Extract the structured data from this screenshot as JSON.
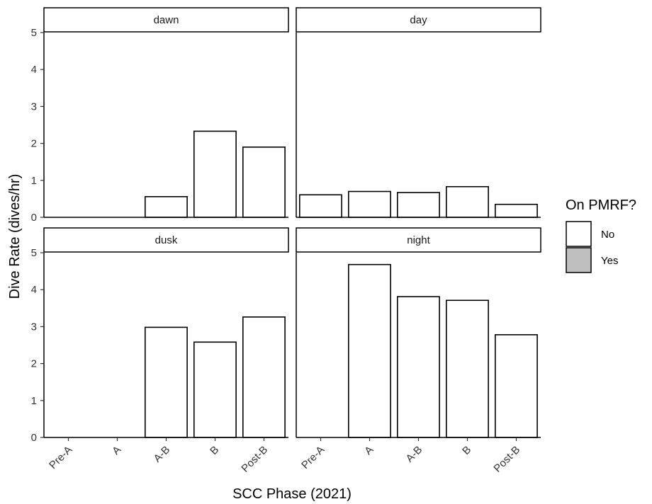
{
  "chart_data": {
    "type": "bar",
    "xlabel": "SCC Phase (2021)",
    "ylabel": "Dive Rate (dives/hr)",
    "categories": [
      "Pre-A",
      "A",
      "A-B",
      "B",
      "Post-B"
    ],
    "ylim": [
      0,
      5
    ],
    "yticks": [
      "0",
      "1",
      "2",
      "3",
      "4",
      "5"
    ],
    "grid": false,
    "legend_position": "right",
    "legend": {
      "title": "On PMRF?",
      "items": [
        {
          "label": "No",
          "color": "#ffffff"
        },
        {
          "label": "Yes",
          "color": "#bebebe"
        }
      ]
    },
    "panels": [
      {
        "label": "dawn",
        "values": [
          null,
          null,
          0.56,
          2.33,
          1.9
        ],
        "on_pmrf": [
          "No",
          "No",
          "No",
          "No",
          "No"
        ]
      },
      {
        "label": "day",
        "values": [
          0.61,
          0.7,
          0.67,
          0.83,
          0.35
        ],
        "on_pmrf": [
          "No",
          "No",
          "No",
          "No",
          "No"
        ]
      },
      {
        "label": "dusk",
        "values": [
          null,
          null,
          2.98,
          2.58,
          3.26
        ],
        "on_pmrf": [
          "No",
          "No",
          "No",
          "No",
          "No"
        ]
      },
      {
        "label": "night",
        "values": [
          null,
          4.68,
          3.81,
          3.71,
          2.78
        ],
        "on_pmrf": [
          "No",
          "No",
          "No",
          "No",
          "No"
        ]
      }
    ]
  }
}
